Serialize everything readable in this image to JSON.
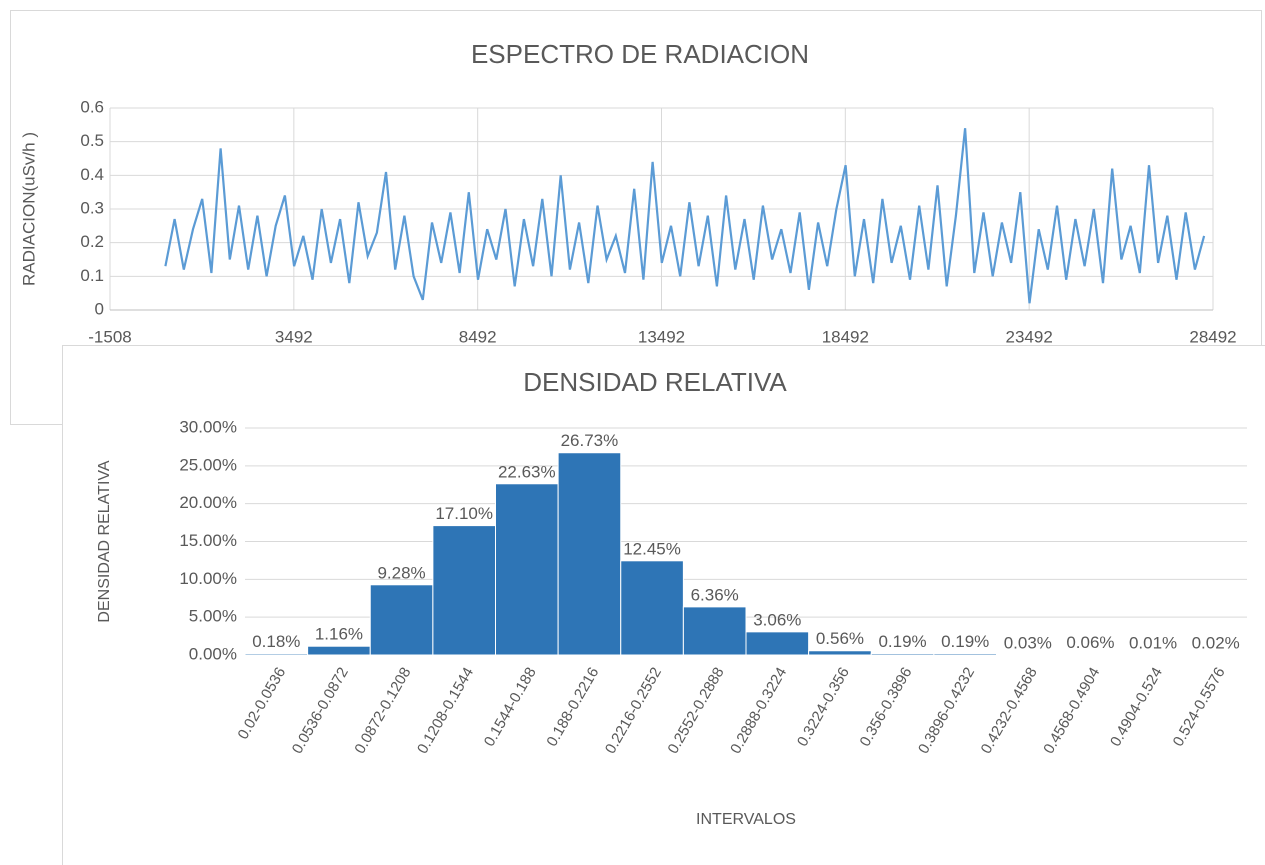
{
  "chart_data": [
    {
      "type": "line",
      "title": "ESPECTRO DE RADIACION",
      "y_label": "RADIACION(uSv/h )",
      "color": "#5b9bd5",
      "grid": true,
      "xlim": [
        -1508,
        28492
      ],
      "xticks": [
        -1508,
        3492,
        8492,
        13492,
        18492,
        23492,
        28492
      ],
      "ylim": [
        0,
        0.6
      ],
      "yticks": [
        0,
        0.1,
        0.2,
        0.3,
        0.4,
        0.5,
        0.6
      ],
      "x": [
        0,
        250,
        500,
        750,
        1000,
        1250,
        1500,
        1750,
        2000,
        2250,
        2500,
        2750,
        3000,
        3250,
        3500,
        3750,
        4000,
        4250,
        4500,
        4750,
        5000,
        5250,
        5500,
        5750,
        6000,
        6250,
        6500,
        6750,
        7000,
        7250,
        7500,
        7750,
        8000,
        8250,
        8500,
        8750,
        9000,
        9250,
        9500,
        9750,
        10000,
        10250,
        10500,
        10750,
        11000,
        11250,
        11500,
        11750,
        12000,
        12250,
        12500,
        12750,
        13000,
        13250,
        13500,
        13750,
        14000,
        14250,
        14500,
        14750,
        15000,
        15250,
        15500,
        15750,
        16000,
        16250,
        16500,
        16750,
        17000,
        17250,
        17500,
        17750,
        18000,
        18250,
        18500,
        18750,
        19000,
        19250,
        19500,
        19750,
        20000,
        20250,
        20500,
        20750,
        21000,
        21250,
        21500,
        21750,
        22000,
        22250,
        22500,
        22750,
        23000,
        23250,
        23500,
        23750,
        24000,
        24250,
        24500,
        24750,
        25000,
        25250,
        25500,
        25750,
        26000,
        26250,
        26500,
        26750,
        27000,
        27250,
        27500,
        27750,
        28000,
        28250
      ],
      "values": [
        0.13,
        0.27,
        0.12,
        0.24,
        0.33,
        0.11,
        0.48,
        0.15,
        0.31,
        0.12,
        0.28,
        0.1,
        0.25,
        0.34,
        0.13,
        0.22,
        0.09,
        0.3,
        0.14,
        0.27,
        0.08,
        0.32,
        0.16,
        0.23,
        0.41,
        0.12,
        0.28,
        0.1,
        0.03,
        0.26,
        0.14,
        0.29,
        0.11,
        0.35,
        0.09,
        0.24,
        0.15,
        0.3,
        0.07,
        0.27,
        0.13,
        0.33,
        0.1,
        0.4,
        0.12,
        0.26,
        0.08,
        0.31,
        0.15,
        0.22,
        0.11,
        0.36,
        0.09,
        0.44,
        0.14,
        0.25,
        0.1,
        0.32,
        0.13,
        0.28,
        0.07,
        0.34,
        0.12,
        0.27,
        0.09,
        0.31,
        0.15,
        0.24,
        0.11,
        0.29,
        0.06,
        0.26,
        0.13,
        0.3,
        0.43,
        0.1,
        0.27,
        0.08,
        0.33,
        0.14,
        0.25,
        0.09,
        0.31,
        0.12,
        0.37,
        0.07,
        0.28,
        0.54,
        0.11,
        0.29,
        0.1,
        0.26,
        0.14,
        0.35,
        0.02,
        0.24,
        0.12,
        0.31,
        0.09,
        0.27,
        0.13,
        0.3,
        0.08,
        0.42,
        0.15,
        0.25,
        0.11,
        0.43,
        0.14,
        0.28,
        0.09,
        0.29,
        0.12,
        0.22
      ]
    },
    {
      "type": "bar",
      "title": "DENSIDAD RELATIVA",
      "y_label": "DENSIDAD RELATIVA",
      "x_label": "INTERVALOS",
      "color": "#2e75b6",
      "grid": true,
      "ylim": [
        0,
        30
      ],
      "yticks": [
        {
          "value": 0,
          "label": "0.00%"
        },
        {
          "value": 5,
          "label": "5.00%"
        },
        {
          "value": 10,
          "label": "10.00%"
        },
        {
          "value": 15,
          "label": "15.00%"
        },
        {
          "value": 20,
          "label": "20.00%"
        },
        {
          "value": 25,
          "label": "25.00%"
        },
        {
          "value": 30,
          "label": "30.00%"
        }
      ],
      "categories": [
        "0.02-0.0536",
        "0.0536-0.0872",
        "0.0872-0.1208",
        "0.1208-0.1544",
        "0.1544-0.188",
        "0.188-0.2216",
        "0.2216-0.2552",
        "0.2552-0.2888",
        "0.2888-0.3224",
        "0.3224-0.356",
        "0.356-0.3896",
        "0.3896-0.4232",
        "0.4232-0.4568",
        "0.4568-0.4904",
        "0.4904-0.524",
        "0.524-0.5576"
      ],
      "values": [
        0.18,
        1.16,
        9.28,
        17.1,
        22.63,
        26.73,
        12.45,
        6.36,
        3.06,
        0.56,
        0.19,
        0.19,
        0.03,
        0.06,
        0.01,
        0.02
      ],
      "value_labels": [
        "0.18%",
        "1.16%",
        "9.28%",
        "17.10%",
        "22.63%",
        "26.73%",
        "12.45%",
        "6.36%",
        "3.06%",
        "0.56%",
        "0.19%",
        "0.19%",
        "0.03%",
        "0.06%",
        "0.01%",
        "0.02%"
      ]
    }
  ]
}
